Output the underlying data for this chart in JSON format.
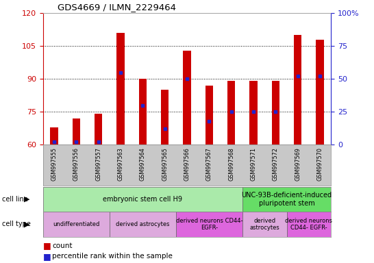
{
  "title": "GDS4669 / ILMN_2229464",
  "samples": [
    "GSM997555",
    "GSM997556",
    "GSM997557",
    "GSM997563",
    "GSM997564",
    "GSM997565",
    "GSM997566",
    "GSM997567",
    "GSM997568",
    "GSM997571",
    "GSM997572",
    "GSM997569",
    "GSM997570"
  ],
  "counts": [
    68,
    72,
    74,
    111,
    90,
    85,
    103,
    87,
    89,
    89,
    89,
    110,
    108
  ],
  "percentile_vals": [
    2,
    2,
    2,
    55,
    30,
    12,
    50,
    18,
    25,
    25,
    25,
    52,
    52
  ],
  "ylim_left": [
    60,
    120
  ],
  "ylim_right": [
    0,
    100
  ],
  "yticks_left": [
    60,
    75,
    90,
    105,
    120
  ],
  "yticks_right": [
    0,
    25,
    50,
    75,
    100
  ],
  "bar_color": "#cc0000",
  "marker_color": "#2222cc",
  "cell_line_groups": [
    {
      "label": "embryonic stem cell H9",
      "start": 0,
      "end": 9,
      "color": "#aaeaaa"
    },
    {
      "label": "UNC-93B-deficient-induced\npluripotent stem",
      "start": 9,
      "end": 13,
      "color": "#66dd66"
    }
  ],
  "cell_type_groups": [
    {
      "label": "undifferentiated",
      "start": 0,
      "end": 3,
      "color": "#ddaadd"
    },
    {
      "label": "derived astrocytes",
      "start": 3,
      "end": 6,
      "color": "#ddaadd"
    },
    {
      "label": "derived neurons CD44-\nEGFR-",
      "start": 6,
      "end": 9,
      "color": "#dd66dd"
    },
    {
      "label": "derived\nastrocytes",
      "start": 9,
      "end": 11,
      "color": "#ddaadd"
    },
    {
      "label": "derived neurons\nCD44- EGFR-",
      "start": 11,
      "end": 13,
      "color": "#dd66dd"
    }
  ],
  "tick_area_color": "#c8c8c8",
  "left_axis_color": "#cc0000",
  "right_axis_color": "#2222cc",
  "bar_width": 0.35,
  "figsize": [
    5.46,
    3.84
  ],
  "dpi": 100
}
